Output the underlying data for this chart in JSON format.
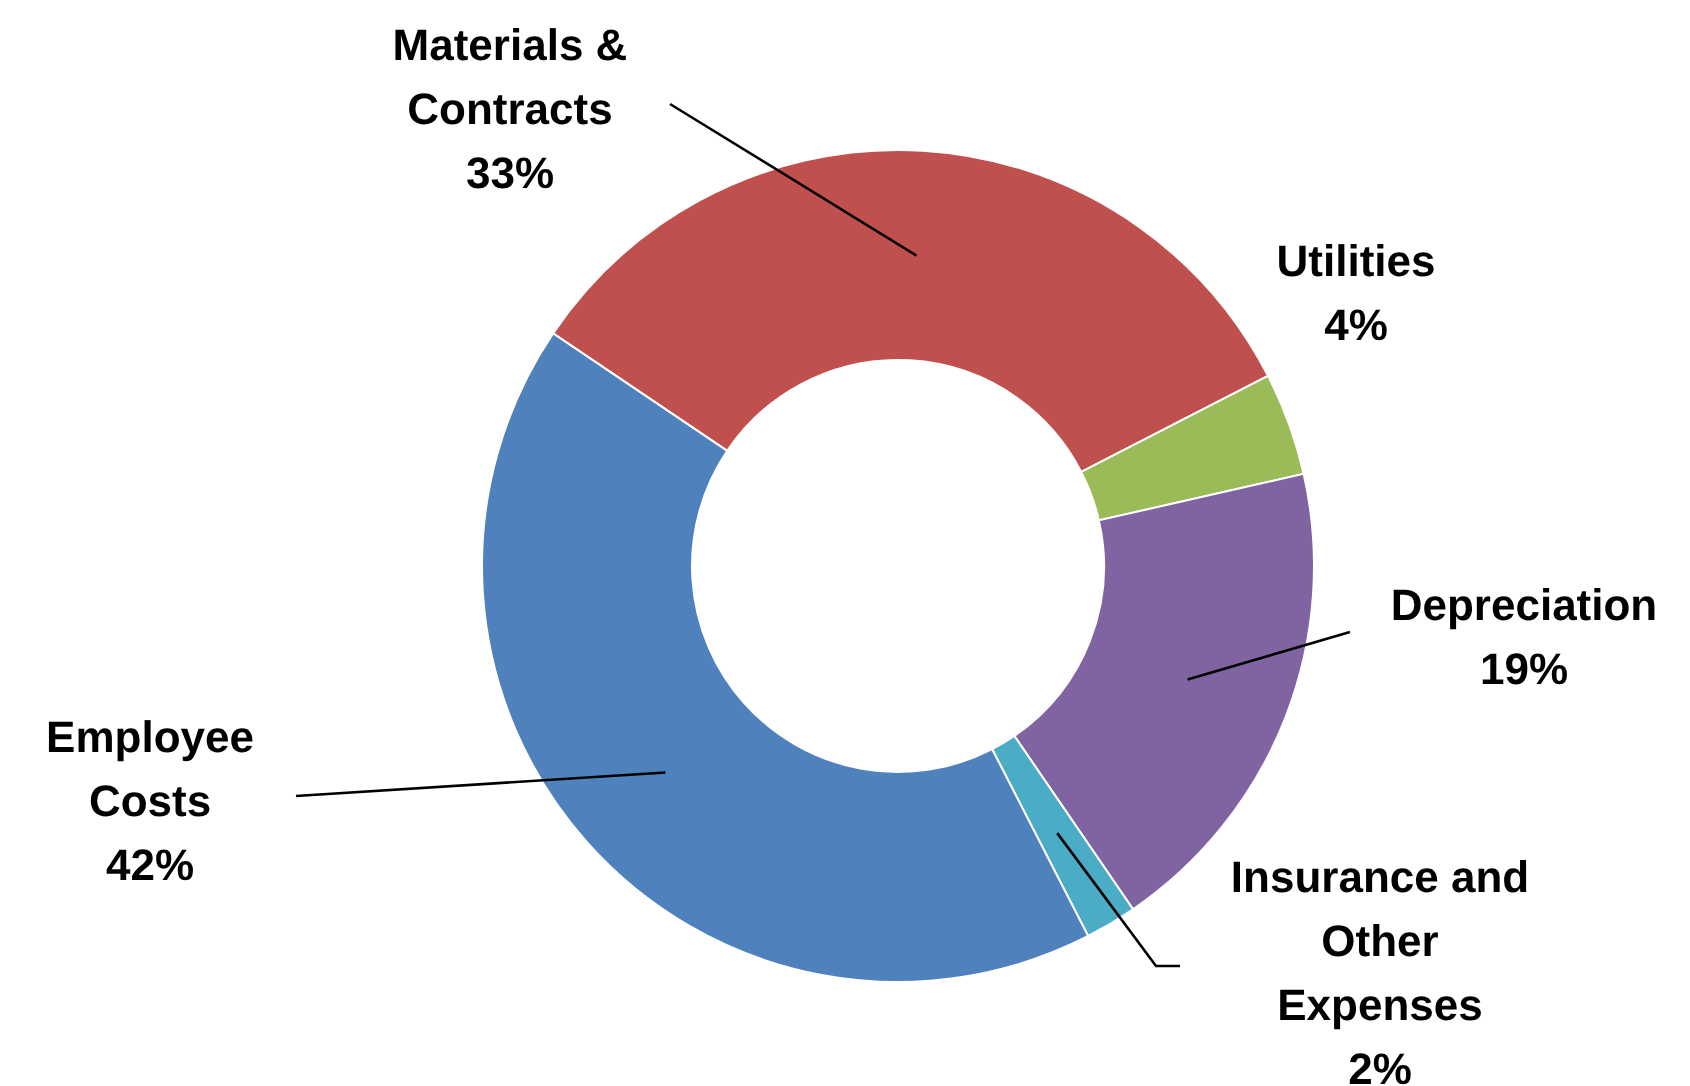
{
  "chart_data": {
    "type": "donut",
    "categories": [
      "Materials & Contracts",
      "Utilities",
      "Depreciation",
      "Insurance and Other Expenses",
      "Employee Costs"
    ],
    "values": [
      33,
      4,
      19,
      2,
      42
    ],
    "colors": [
      "#c0504d",
      "#9bbb59",
      "#8064a2",
      "#4bacc6",
      "#4f81bd"
    ],
    "value_labels": [
      "33%",
      "4%",
      "19%",
      "2%",
      "42%"
    ],
    "legend": false
  }
}
